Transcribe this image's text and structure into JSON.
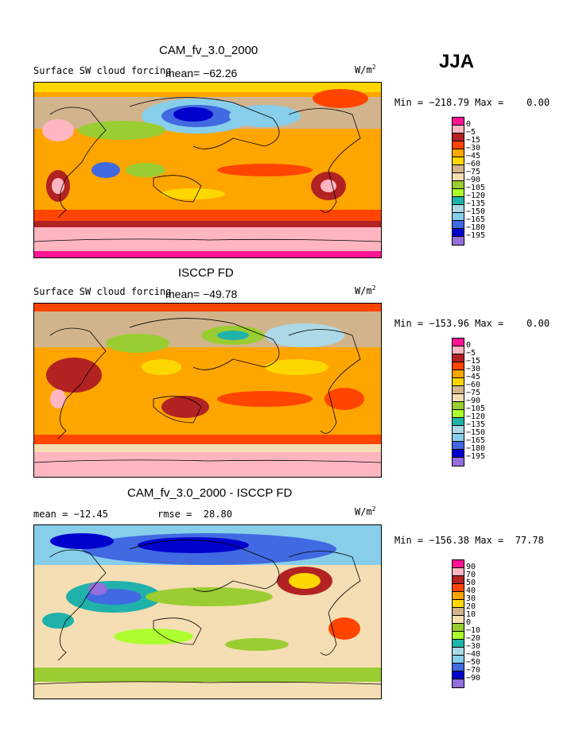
{
  "season": "JJA",
  "units": "W/m",
  "units_sup": "2",
  "panels": [
    {
      "title": "CAM_fv_3.0_2000",
      "subtitle": "Surface SW cloud forcing",
      "mean": "mean= −62.26",
      "minmax": "Min = −218.79 Max =    0.00",
      "legend_colors": [
        "#ff1493",
        "#ffb6c1",
        "#b22222",
        "#ff4500",
        "#ffa500",
        "#ffd700",
        "#d2b48c",
        "#f5deb3",
        "#9acd32",
        "#adff2f",
        "#20b2aa",
        "#add8e6",
        "#87ceeb",
        "#4169e1",
        "#0000cd",
        "#9370db"
      ],
      "legend_labels": [
        "0",
        "−5",
        "−15",
        "−30",
        "−45",
        "−60",
        "−75",
        "−90",
        "−105",
        "−120",
        "−135",
        "−150",
        "−165",
        "−180",
        "−195"
      ]
    },
    {
      "title": "ISCCP FD",
      "subtitle": "Surface SW cloud forcing",
      "mean": "mean= −49.78",
      "minmax": "Min = −153.96 Max =    0.00",
      "legend_colors": [
        "#ff1493",
        "#ffb6c1",
        "#b22222",
        "#ff4500",
        "#ffa500",
        "#ffd700",
        "#d2b48c",
        "#f5deb3",
        "#9acd32",
        "#adff2f",
        "#20b2aa",
        "#add8e6",
        "#87ceeb",
        "#4169e1",
        "#0000cd",
        "#9370db"
      ],
      "legend_labels": [
        "0",
        "−5",
        "−15",
        "−30",
        "−45",
        "−60",
        "−75",
        "−90",
        "−105",
        "−120",
        "−135",
        "−150",
        "−165",
        "−180",
        "−195"
      ]
    },
    {
      "title": "CAM_fv_3.0_2000 - ISCCP FD",
      "mean": "mean = −12.45",
      "rmse": "rmse =  28.80",
      "minmax": "Min = −156.38 Max =  77.78",
      "legend_colors": [
        "#ff1493",
        "#ffb6c1",
        "#b22222",
        "#ff4500",
        "#ffa500",
        "#ffd700",
        "#d2b48c",
        "#f5deb3",
        "#9acd32",
        "#adff2f",
        "#20b2aa",
        "#add8e6",
        "#87ceeb",
        "#4169e1",
        "#0000cd",
        "#9370db"
      ],
      "legend_labels": [
        "90",
        "70",
        "50",
        "40",
        "30",
        "20",
        "10",
        "0",
        "−10",
        "−20",
        "−30",
        "−40",
        "−50",
        "−70",
        "−90"
      ]
    }
  ]
}
